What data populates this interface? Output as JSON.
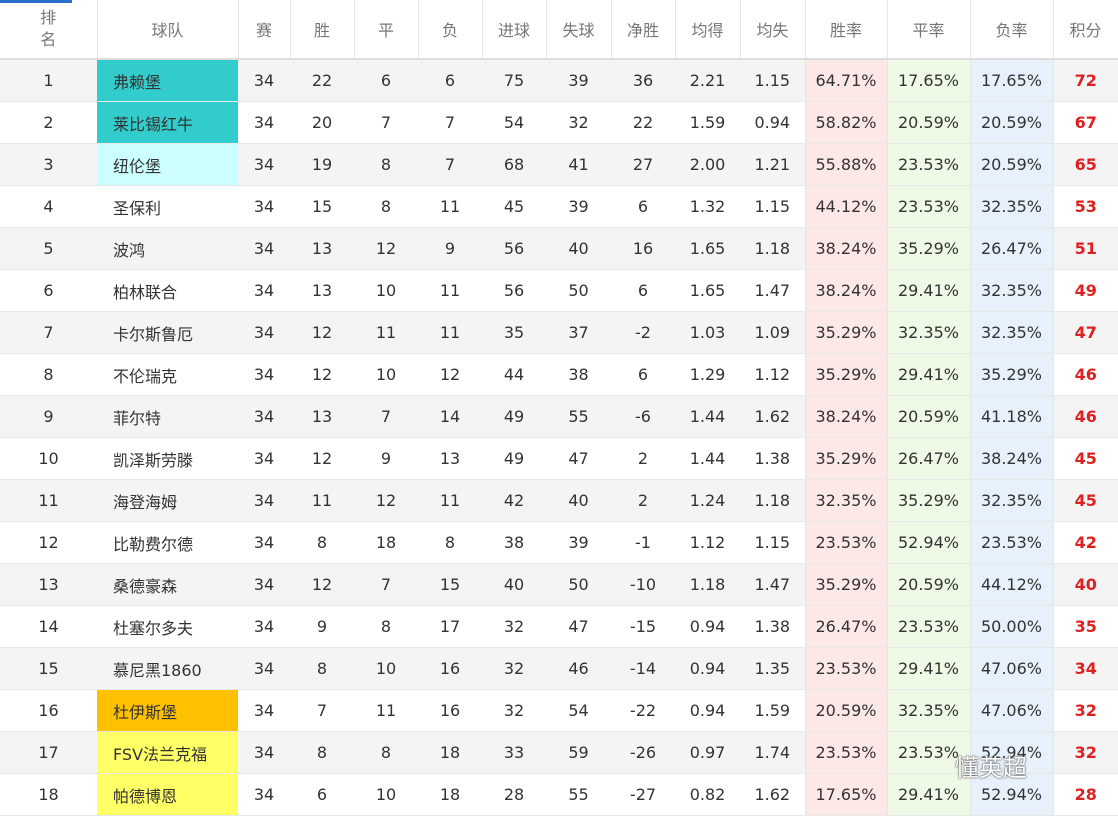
{
  "table": {
    "header": [
      "排名",
      "球队",
      "赛",
      "胜",
      "平",
      "负",
      "进球",
      "失球",
      "净胜",
      "均得",
      "均失",
      "胜率",
      "平率",
      "负率",
      "积分"
    ],
    "rows": [
      [
        "1",
        "弗赖堡",
        "34",
        "22",
        "6",
        "6",
        "75",
        "39",
        "36",
        "2.21",
        "1.15",
        "64.71%",
        "17.65%",
        "17.65%",
        "72"
      ],
      [
        "2",
        "莱比锡红牛",
        "34",
        "20",
        "7",
        "7",
        "54",
        "32",
        "22",
        "1.59",
        "0.94",
        "58.82%",
        "20.59%",
        "20.59%",
        "67"
      ],
      [
        "3",
        "纽伦堡",
        "34",
        "19",
        "8",
        "7",
        "68",
        "41",
        "27",
        "2.00",
        "1.21",
        "55.88%",
        "23.53%",
        "20.59%",
        "65"
      ],
      [
        "4",
        "圣保利",
        "34",
        "15",
        "8",
        "11",
        "45",
        "39",
        "6",
        "1.32",
        "1.15",
        "44.12%",
        "23.53%",
        "32.35%",
        "53"
      ],
      [
        "5",
        "波鸿",
        "34",
        "13",
        "12",
        "9",
        "56",
        "40",
        "16",
        "1.65",
        "1.18",
        "38.24%",
        "35.29%",
        "26.47%",
        "51"
      ],
      [
        "6",
        "柏林联合",
        "34",
        "13",
        "10",
        "11",
        "56",
        "50",
        "6",
        "1.65",
        "1.47",
        "38.24%",
        "29.41%",
        "32.35%",
        "49"
      ],
      [
        "7",
        "卡尔斯鲁厄",
        "34",
        "12",
        "11",
        "11",
        "35",
        "37",
        "-2",
        "1.03",
        "1.09",
        "35.29%",
        "32.35%",
        "32.35%",
        "47"
      ],
      [
        "8",
        "不伦瑞克",
        "34",
        "12",
        "10",
        "12",
        "44",
        "38",
        "6",
        "1.29",
        "1.12",
        "35.29%",
        "29.41%",
        "35.29%",
        "46"
      ],
      [
        "9",
        "菲尔特",
        "34",
        "13",
        "7",
        "14",
        "49",
        "55",
        "-6",
        "1.44",
        "1.62",
        "38.24%",
        "20.59%",
        "41.18%",
        "46"
      ],
      [
        "10",
        "凯泽斯劳滕",
        "34",
        "12",
        "9",
        "13",
        "49",
        "47",
        "2",
        "1.44",
        "1.38",
        "35.29%",
        "26.47%",
        "38.24%",
        "45"
      ],
      [
        "11",
        "海登海姆",
        "34",
        "11",
        "12",
        "11",
        "42",
        "40",
        "2",
        "1.24",
        "1.18",
        "32.35%",
        "35.29%",
        "32.35%",
        "45"
      ],
      [
        "12",
        "比勒费尔德",
        "34",
        "8",
        "18",
        "8",
        "38",
        "39",
        "-1",
        "1.12",
        "1.15",
        "23.53%",
        "52.94%",
        "23.53%",
        "42"
      ],
      [
        "13",
        "桑德豪森",
        "34",
        "12",
        "7",
        "15",
        "40",
        "50",
        "-10",
        "1.18",
        "1.47",
        "35.29%",
        "20.59%",
        "44.12%",
        "40"
      ],
      [
        "14",
        "杜塞尔多夫",
        "34",
        "9",
        "8",
        "17",
        "32",
        "47",
        "-15",
        "0.94",
        "1.38",
        "26.47%",
        "23.53%",
        "50.00%",
        "35"
      ],
      [
        "15",
        "慕尼黑1860",
        "34",
        "8",
        "10",
        "16",
        "32",
        "46",
        "-14",
        "0.94",
        "1.35",
        "23.53%",
        "29.41%",
        "47.06%",
        "34"
      ],
      [
        "16",
        "杜伊斯堡",
        "34",
        "7",
        "11",
        "16",
        "32",
        "54",
        "-22",
        "0.94",
        "1.59",
        "20.59%",
        "32.35%",
        "47.06%",
        "32"
      ],
      [
        "17",
        "FSV法兰克福",
        "34",
        "8",
        "8",
        "18",
        "33",
        "59",
        "-26",
        "0.97",
        "1.74",
        "23.53%",
        "23.53%",
        "52.94%",
        "32"
      ],
      [
        "18",
        "帕德博恩",
        "34",
        "6",
        "10",
        "18",
        "28",
        "55",
        "-27",
        "0.82",
        "1.62",
        "17.65%",
        "29.41%",
        "52.94%",
        "28"
      ]
    ]
  },
  "watermark": "懂英超"
}
